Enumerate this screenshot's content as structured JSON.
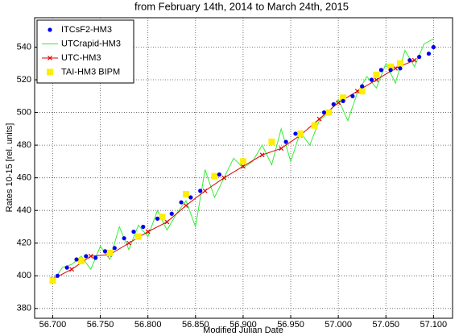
{
  "chart_data": {
    "type": "line",
    "subtitle": "from February 14th, 2014 to March 24th, 2015",
    "x_label": "Modified Julian Date",
    "y_label": "Rates 10-15 [rel. units]",
    "xlim": [
      56.681,
      57.12
    ],
    "ylim": [
      374,
      558
    ],
    "xticks": [
      {
        "value": 56.7,
        "label": "56.700"
      },
      {
        "value": 56.75,
        "label": "56.750"
      },
      {
        "value": 56.8,
        "label": "56.800"
      },
      {
        "value": 56.85,
        "label": "56.850"
      },
      {
        "value": 56.9,
        "label": "56.900"
      },
      {
        "value": 56.95,
        "label": "56.950"
      },
      {
        "value": 57.0,
        "label": "57.000"
      },
      {
        "value": 57.05,
        "label": "57.050"
      },
      {
        "value": 57.1,
        "label": "57.100"
      }
    ],
    "yticks": [
      380,
      400,
      420,
      440,
      460,
      480,
      500,
      520,
      540
    ],
    "grid": true,
    "legend": "upper left",
    "series": [
      {
        "name": "UTCrapid-HM3",
        "color": "#33ee33",
        "mode": "line",
        "x": [
          56.7,
          56.71,
          56.72,
          56.73,
          56.74,
          56.75,
          56.76,
          56.77,
          56.78,
          56.79,
          56.8,
          56.81,
          56.82,
          56.83,
          56.84,
          56.85,
          56.86,
          56.87,
          56.88,
          56.89,
          56.9,
          56.91,
          56.92,
          56.93,
          56.94,
          56.95,
          56.96,
          56.97,
          56.98,
          56.99,
          57.0,
          57.01,
          57.02,
          57.03,
          57.04,
          57.05,
          57.06,
          57.07,
          57.08,
          57.09,
          57.1
        ],
        "values": [
          396,
          405,
          407,
          412,
          404,
          418,
          410,
          430,
          416,
          431,
          424,
          440,
          428,
          438,
          446,
          430,
          465,
          448,
          460,
          472,
          466,
          470,
          480,
          468,
          490,
          470,
          488,
          480,
          495,
          500,
          508,
          495,
          512,
          522,
          515,
          530,
          518,
          538,
          528,
          542,
          545
        ]
      },
      {
        "name": "UTC-HM3",
        "color": "#dd0000",
        "mode": "line+markers",
        "marker": "x",
        "x": [
          56.7,
          56.72,
          56.74,
          56.76,
          56.78,
          56.8,
          56.82,
          56.84,
          56.86,
          56.88,
          56.9,
          56.92,
          56.94,
          56.96,
          56.98,
          57.0,
          57.02,
          57.04,
          57.06,
          57.08
        ],
        "values": [
          398,
          404,
          412,
          413,
          420,
          427,
          433,
          443,
          452,
          460,
          467,
          474,
          478,
          486,
          496,
          506,
          513,
          520,
          527,
          532
        ]
      },
      {
        "name": "TAI-HM3 BIPM",
        "color": "#ffee00",
        "mode": "markers",
        "marker": "square",
        "x": [
          56.7,
          56.73,
          56.76,
          56.79,
          56.815,
          56.84,
          56.87,
          56.9,
          56.93,
          56.96,
          56.975,
          56.99,
          57.005,
          57.025,
          57.04,
          57.055,
          57.065
        ],
        "values": [
          397,
          409,
          414,
          424,
          436,
          450,
          461,
          470,
          482,
          487,
          492,
          500,
          509,
          513,
          523,
          528,
          530
        ]
      },
      {
        "name": "ITCsF2-HM3",
        "color": "#0000ee",
        "mode": "markers",
        "marker": "circle",
        "x": [
          56.705,
          56.715,
          56.725,
          56.735,
          56.745,
          56.755,
          56.765,
          56.775,
          56.785,
          56.795,
          56.81,
          56.825,
          56.835,
          56.845,
          56.855,
          56.875,
          56.945,
          56.955,
          56.985,
          56.995,
          57.005,
          57.015,
          57.025,
          57.035,
          57.045,
          57.055,
          57.065,
          57.075,
          57.085,
          57.095,
          57.1
        ],
        "values": [
          400,
          405,
          410,
          412,
          411,
          415,
          417,
          423,
          427,
          430,
          435,
          438,
          445,
          448,
          452,
          462,
          482,
          487,
          500,
          505,
          507,
          510,
          516,
          520,
          526,
          526,
          527,
          532,
          534,
          536,
          540
        ]
      }
    ]
  }
}
